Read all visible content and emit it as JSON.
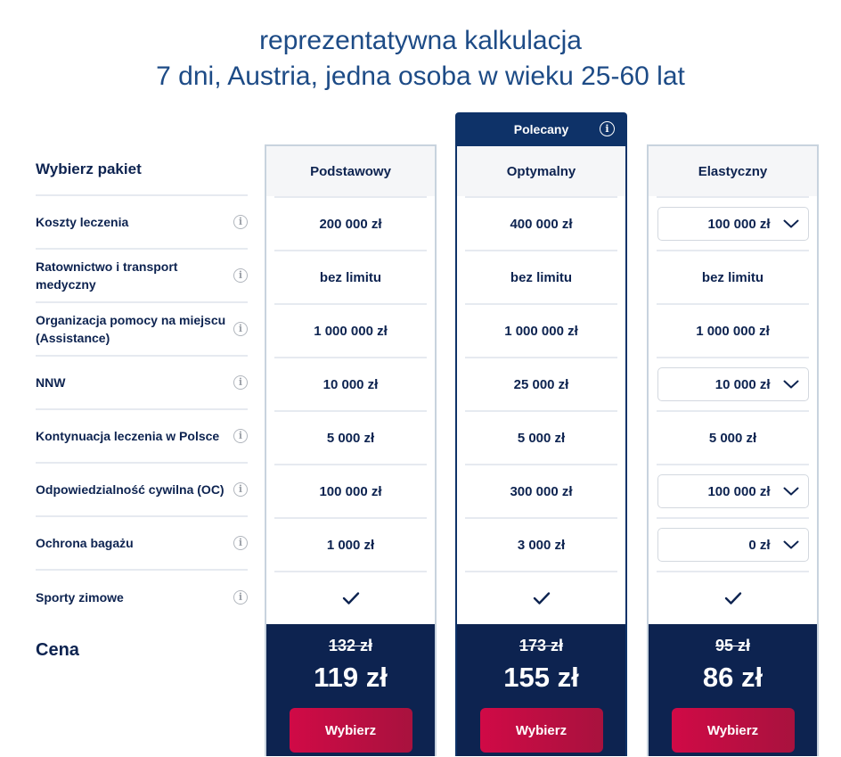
{
  "header": {
    "line1": "reprezentatywna kalkulacja",
    "line2": "7 dni, Austria, jedna osoba w wieku 25-60 lat"
  },
  "table": {
    "choose_label": "Wybierz pakiet",
    "price_label": "Cena",
    "recommended_badge": "Polecany",
    "rows": [
      {
        "label": "Koszty leczenia"
      },
      {
        "label": "Ratownictwo i transport medyczny"
      },
      {
        "label": "Organizacja pomocy na miejscu (Assistance)"
      },
      {
        "label": "NNW"
      },
      {
        "label": "Kontynuacja leczenia w Polsce"
      },
      {
        "label": "Odpowiedzialność cywilna (OC)"
      },
      {
        "label": "Ochrona bagażu"
      },
      {
        "label": "Sporty zimowe"
      }
    ]
  },
  "packages": [
    {
      "name": "Podstawowy",
      "values": [
        "200 000 zł",
        "bez limitu",
        "1 000 000 zł",
        "10 000 zł",
        "5 000 zł",
        "100 000 zł",
        "1 000 zł"
      ],
      "winter_sports": true,
      "old_price": "132 zł",
      "new_price": "119 zł",
      "button": "Wybierz"
    },
    {
      "name": "Optymalny",
      "values": [
        "400 000 zł",
        "bez limitu",
        "1 000 000 zł",
        "25 000 zł",
        "5 000 zł",
        "300 000 zł",
        "3 000 zł"
      ],
      "winter_sports": true,
      "old_price": "173 zł",
      "new_price": "155 zł",
      "button": "Wybierz"
    },
    {
      "name": "Elastyczny",
      "values": [
        "100 000 zł",
        "bez limitu",
        "1 000 000 zł",
        "10 000 zł",
        "5 000 zł",
        "100 000 zł",
        "0 zł"
      ],
      "winter_sports": true,
      "old_price": "95 zł",
      "new_price": "86 zł",
      "button": "Wybierz"
    }
  ],
  "colors": {
    "navy": "#0d2350",
    "title_blue": "#1d4b86",
    "button_red": "#c8103f"
  }
}
